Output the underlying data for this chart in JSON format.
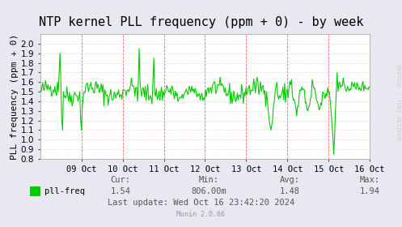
{
  "title": "NTP kernel PLL frequency (ppm + 0) - by week",
  "ylabel": "PLL frequency (ppm + 0)",
  "bg_color": "#e8e8f0",
  "plot_bg_color": "#ffffff",
  "line_color": "#00cc00",
  "border_color": "#aaaaaa",
  "ylim": [
    0.8,
    2.1
  ],
  "yticks": [
    0.8,
    0.9,
    1.0,
    1.1,
    1.2,
    1.3,
    1.4,
    1.5,
    1.6,
    1.7,
    1.8,
    1.9,
    2.0
  ],
  "xtick_labels": [
    "09 Oct",
    "10 Oct",
    "11 Oct",
    "12 Oct",
    "13 Oct",
    "14 Oct",
    "15 Oct",
    "16 Oct"
  ],
  "cur": "1.54",
  "min": "806.00m",
  "avg": "1.48",
  "max": "1.94",
  "legend_label": "pll-freq",
  "legend_color": "#00cc00",
  "last_update": "Last update: Wed Oct 16 23:42:20 2024",
  "munin_version": "Munin 2.0.66",
  "right_label": "RRDTOOL / TOBI OETIKER",
  "title_color": "#000000",
  "label_color": "#000000",
  "tick_color": "#000000",
  "stats_color": "#555555",
  "munin_color": "#999999",
  "right_label_color": "#cccccc",
  "vline_color": "#ff6666",
  "vline_positions": [
    1,
    2,
    3,
    4,
    5,
    6,
    7
  ],
  "title_fontsize": 11,
  "axis_label_fontsize": 8,
  "tick_fontsize": 7.5,
  "stats_fontsize": 7.5,
  "font_family": "monospace"
}
